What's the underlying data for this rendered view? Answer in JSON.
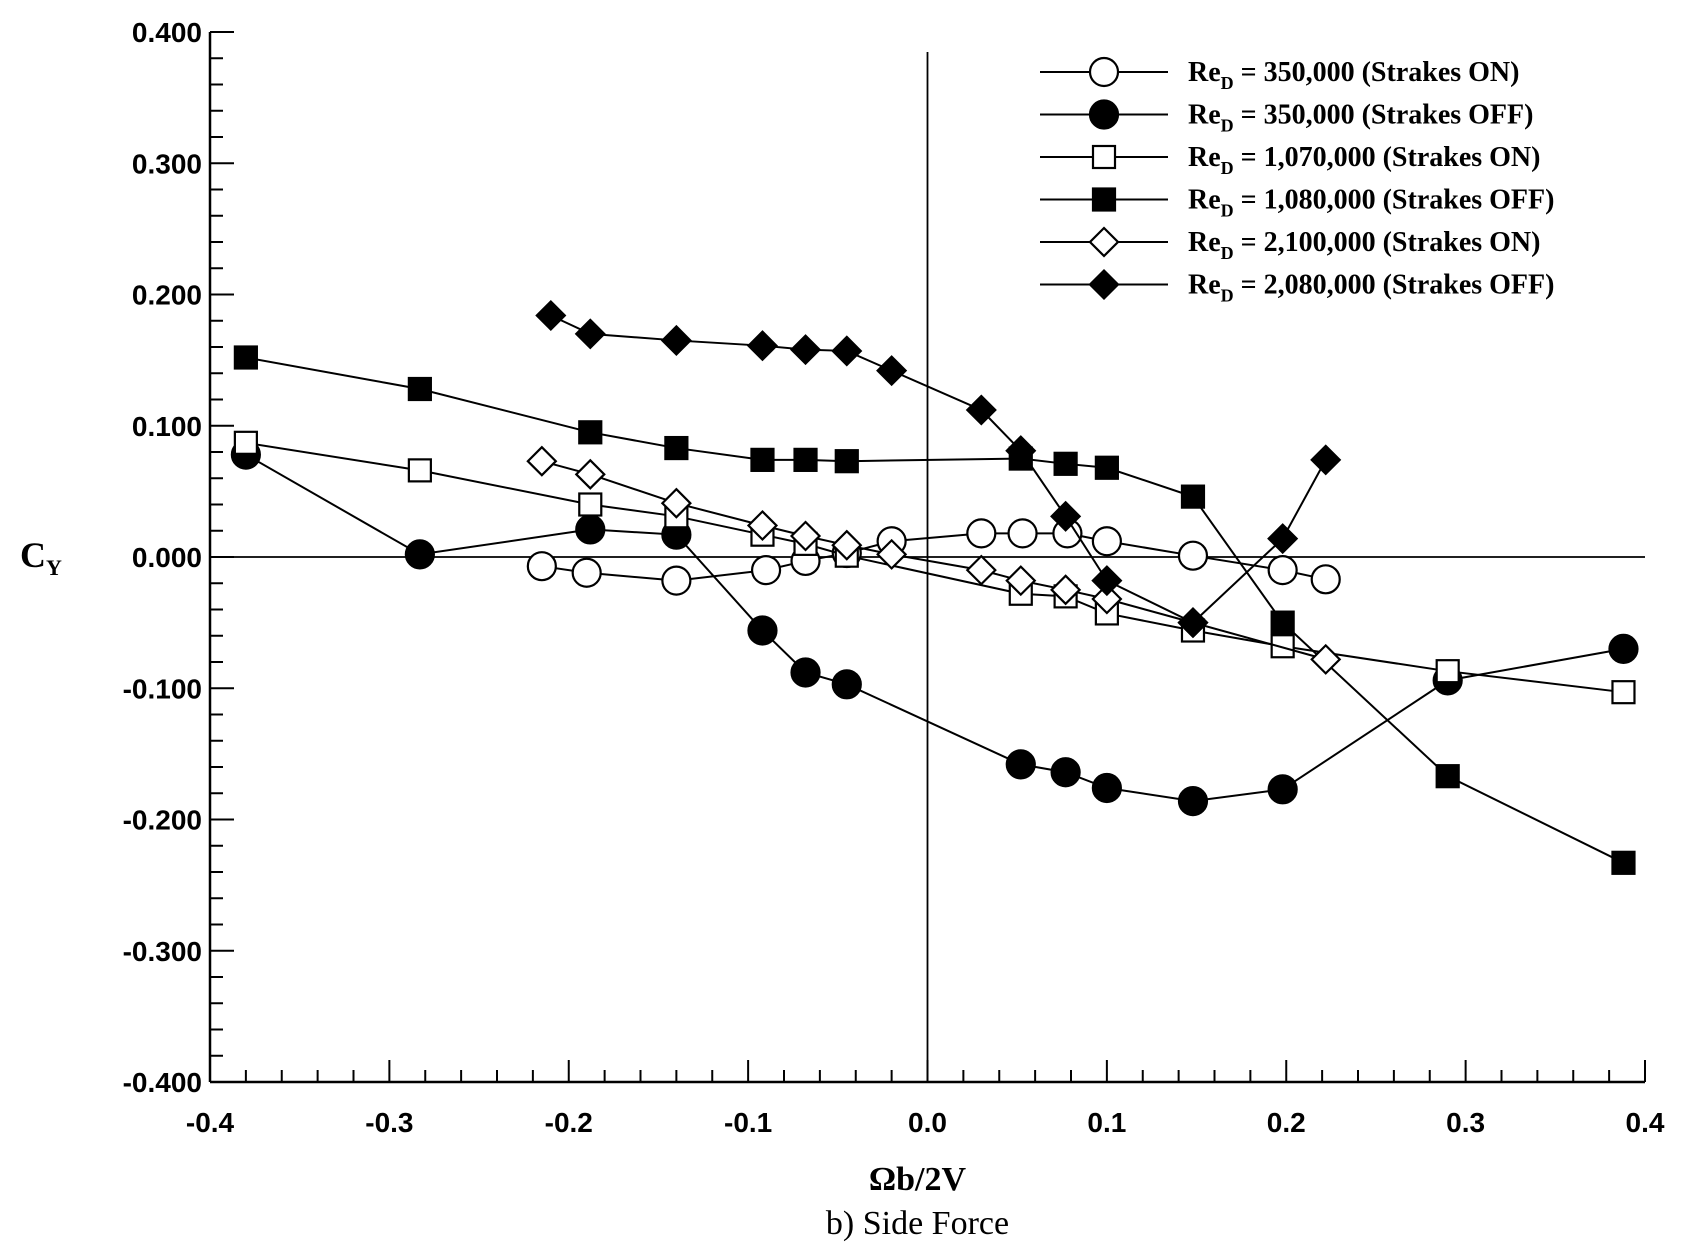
{
  "chart_data": {
    "type": "line",
    "caption": "b) Side Force",
    "xlabel": "Ωb/2V",
    "ylabel_main": "C",
    "ylabel_sub": "Y",
    "xlim": [
      -0.4,
      0.4
    ],
    "ylim": [
      -0.4,
      0.4
    ],
    "x_ticks": [
      "-0.4",
      "-0.3",
      "-0.2",
      "-0.1",
      "0.0",
      "0.1",
      "0.2",
      "0.3",
      "0.4"
    ],
    "y_ticks": [
      "0.400",
      "0.300",
      "0.200",
      "0.100",
      "0.000",
      "-0.100",
      "-0.200",
      "-0.300",
      "-0.400"
    ],
    "grid": false,
    "legend_position": "top-right",
    "series": [
      {
        "label_main": "Re",
        "label_sub": "D",
        "label_rest": " = 350,000 (Strakes ON)",
        "marker": "circle-open",
        "x": [
          -0.215,
          -0.19,
          -0.14,
          -0.09,
          -0.068,
          -0.045,
          -0.02,
          0.03,
          0.053,
          0.078,
          0.1,
          0.148,
          0.198,
          0.222
        ],
        "y": [
          -0.007,
          -0.012,
          -0.018,
          -0.01,
          -0.003,
          0.003,
          0.012,
          0.018,
          0.018,
          0.018,
          0.012,
          0.001,
          -0.01,
          -0.017
        ]
      },
      {
        "label_main": "Re",
        "label_sub": "D",
        "label_rest": " = 350,000 (Strakes OFF)",
        "marker": "circle-filled",
        "x": [
          -0.38,
          -0.283,
          -0.188,
          -0.14,
          -0.092,
          -0.068,
          -0.045,
          0.052,
          0.077,
          0.1,
          0.148,
          0.198,
          0.29,
          0.388
        ],
        "y": [
          0.078,
          0.002,
          0.021,
          0.017,
          -0.056,
          -0.088,
          -0.097,
          -0.158,
          -0.164,
          -0.176,
          -0.186,
          -0.177,
          -0.094,
          -0.07
        ]
      },
      {
        "label_main": "Re",
        "label_sub": "D",
        "label_rest": " = 1,070,000 (Strakes ON)",
        "marker": "square-open",
        "x": [
          -0.38,
          -0.283,
          -0.188,
          -0.14,
          -0.092,
          -0.068,
          -0.045,
          0.052,
          0.077,
          0.1,
          0.148,
          0.198,
          0.29,
          0.388
        ],
        "y": [
          0.087,
          0.066,
          0.04,
          0.031,
          0.017,
          0.01,
          0.001,
          -0.028,
          -0.03,
          -0.043,
          -0.056,
          -0.068,
          -0.087,
          -0.103
        ]
      },
      {
        "label_main": "Re",
        "label_sub": "D",
        "label_rest": " = 1,080,000 (Strakes OFF)",
        "marker": "square-filled",
        "x": [
          -0.38,
          -0.283,
          -0.188,
          -0.14,
          -0.092,
          -0.068,
          -0.045,
          0.052,
          0.077,
          0.1,
          0.148,
          0.198,
          0.29,
          0.388
        ],
        "y": [
          0.152,
          0.128,
          0.095,
          0.083,
          0.074,
          0.074,
          0.073,
          0.075,
          0.071,
          0.068,
          0.046,
          -0.05,
          -0.167,
          -0.233
        ]
      },
      {
        "label_main": "Re",
        "label_sub": "D",
        "label_rest": " = 2,100,000 (Strakes ON)",
        "marker": "diamond-open",
        "x": [
          -0.215,
          -0.188,
          -0.14,
          -0.092,
          -0.068,
          -0.045,
          -0.02,
          0.03,
          0.052,
          0.077,
          0.1,
          0.148,
          0.222
        ],
        "y": [
          0.073,
          0.063,
          0.041,
          0.024,
          0.016,
          0.009,
          0.002,
          -0.01,
          -0.018,
          -0.025,
          -0.032,
          -0.05,
          -0.078
        ]
      },
      {
        "label_main": "Re",
        "label_sub": "D",
        "label_rest": " = 2,080,000 (Strakes OFF)",
        "marker": "diamond-filled",
        "x": [
          -0.21,
          -0.188,
          -0.14,
          -0.092,
          -0.068,
          -0.045,
          -0.02,
          0.03,
          0.052,
          0.077,
          0.1,
          0.148,
          0.198,
          0.222
        ],
        "y": [
          0.184,
          0.17,
          0.165,
          0.161,
          0.158,
          0.157,
          0.142,
          0.112,
          0.081,
          0.031,
          -0.018,
          -0.05,
          0.014,
          0.074
        ]
      }
    ]
  }
}
